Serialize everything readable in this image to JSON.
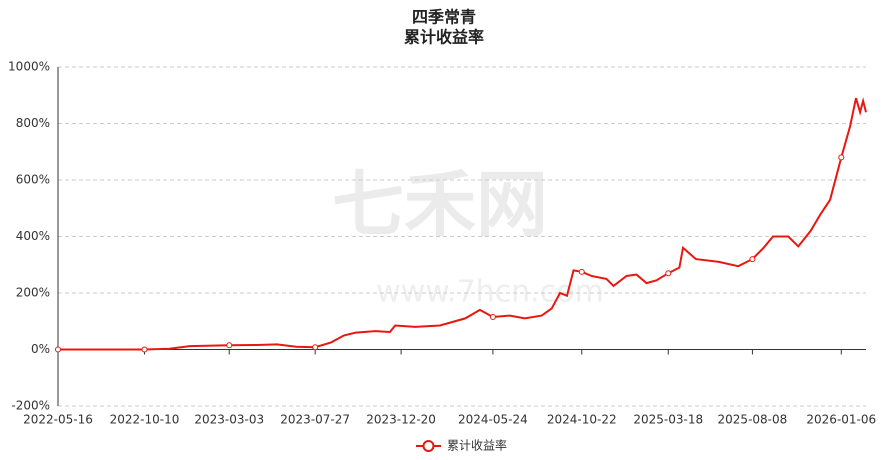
{
  "chart_data": {
    "type": "line",
    "title": "四季常青",
    "subtitle": "累计收益率",
    "watermark": "七禾网",
    "watermark_url": "www.7hcn.com",
    "x": [
      "2022-05-16",
      "2022-10-10",
      "2022-11-21",
      "2022-12-26",
      "2023-03-03",
      "2023-04-19",
      "2023-05-23",
      "2023-06-25",
      "2023-07-27",
      "2023-08-23",
      "2023-09-14",
      "2023-10-04",
      "2023-11-06",
      "2023-12-01",
      "2023-12-10",
      "2024-01-13",
      "2024-02-24",
      "2024-04-07",
      "2024-05-02",
      "2024-05-24",
      "2024-06-22",
      "2024-07-17",
      "2024-08-15",
      "2024-09-01",
      "2024-09-15",
      "2024-09-27",
      "2024-10-08",
      "2024-10-22",
      "2024-11-08",
      "2024-12-03",
      "2024-12-15",
      "2025-01-06",
      "2025-01-23",
      "2025-02-09",
      "2025-02-26",
      "2025-03-18",
      "2025-04-06",
      "2025-04-12",
      "2025-05-04",
      "2025-06-12",
      "2025-07-15",
      "2025-08-08",
      "2025-08-27",
      "2025-09-12",
      "2025-10-08",
      "2025-10-25",
      "2025-11-15",
      "2025-12-02",
      "2025-12-18",
      "2026-01-06",
      "2026-01-21",
      "2026-01-31",
      "2026-02-07",
      "2026-02-12",
      "2026-02-17"
    ],
    "series": [
      {
        "name": "累计收益率",
        "color": "#e8170f",
        "values": [
          0,
          0,
          3,
          12,
          15,
          16,
          18,
          10,
          8,
          25,
          50,
          60,
          65,
          62,
          85,
          80,
          85,
          110,
          140,
          115,
          120,
          110,
          120,
          145,
          200,
          190,
          280,
          275,
          260,
          250,
          225,
          260,
          265,
          235,
          245,
          270,
          290,
          360,
          320,
          310,
          295,
          320,
          360,
          400,
          400,
          365,
          420,
          480,
          530,
          680,
          790,
          890,
          840,
          880,
          840
        ]
      }
    ],
    "xlim": [
      "2022-05-16",
      "2026-02-17"
    ],
    "xticks": [
      "2022-05-16",
      "2022-10-10",
      "2023-03-03",
      "2023-07-27",
      "2023-12-20",
      "2024-05-24",
      "2024-10-22",
      "2025-03-18",
      "2025-08-08",
      "2026-01-06"
    ],
    "ylim": [
      -200,
      1000
    ],
    "yticks": [
      {
        "value": -200,
        "label": "-200%"
      },
      {
        "value": 0,
        "label": "0%"
      },
      {
        "value": 200,
        "label": "200%"
      },
      {
        "value": 400,
        "label": "400%"
      },
      {
        "value": 600,
        "label": "600%"
      },
      {
        "value": 800,
        "label": "800%"
      },
      {
        "value": 1000,
        "label": "1000%"
      }
    ],
    "grid": true,
    "legend": "bottom"
  }
}
